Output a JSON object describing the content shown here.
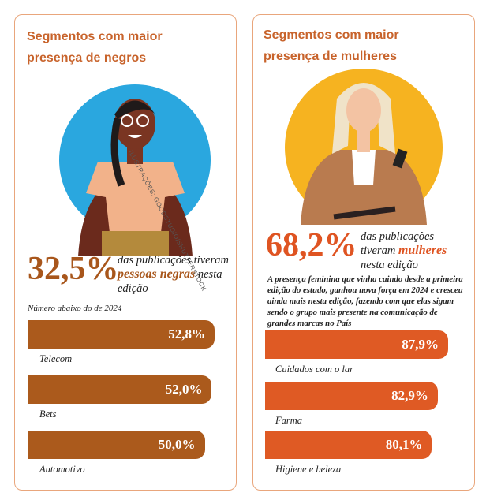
{
  "chart_data": [
    {
      "type": "bar",
      "title": "Segmentos com maior presença de negros",
      "credit": "ILUSTRAÇÕES: GOODSTUDIO/SHUTTERSTOCK",
      "headline": "32,5%",
      "headline_text": [
        "das publicações tiveram ",
        "pessoas negras",
        " nesta edição"
      ],
      "note": "Número abaixo do de 2024",
      "categories": [
        "Telecom",
        "Bets",
        "Automotivo"
      ],
      "values": [
        52.8,
        52.0,
        50.0
      ],
      "value_labels": [
        "52,8%",
        "52,0%",
        "50,0%"
      ],
      "color": "#ab5a1c"
    },
    {
      "type": "bar",
      "title": "Segmentos com maior presença de mulheres",
      "headline": "68,2%",
      "headline_text": [
        "das publicações tiveram ",
        "mulheres",
        " nesta edição"
      ],
      "note": "A presença feminina que vinha caindo desde a primeira edição do estudo, ganhou nova força em 2024 e cresceu ainda mais nesta edição, fazendo com que elas sigam sendo o grupo mais presente na comunicação de grandes marcas no País",
      "categories": [
        "Cuidados com o lar",
        "Farma",
        "Higiene e beleza"
      ],
      "values": [
        87.9,
        82.9,
        80.1
      ],
      "value_labels": [
        "87,9%",
        "82,9%",
        "80,1%"
      ],
      "color": "#df5a24"
    }
  ]
}
